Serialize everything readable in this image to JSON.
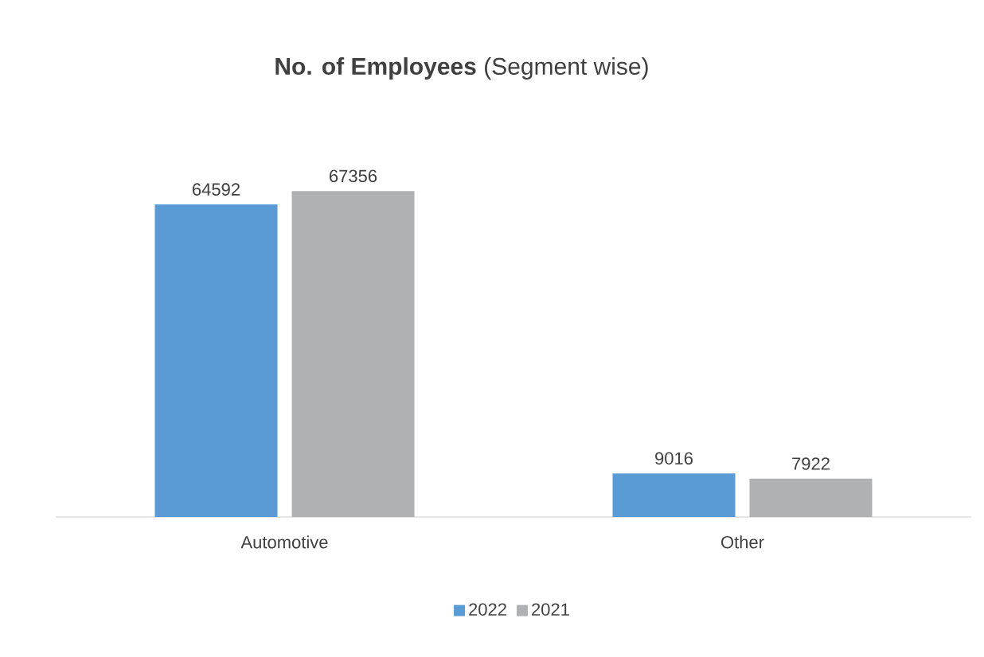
{
  "chart_data": {
    "type": "bar",
    "title": "**No. of Employees** (Segment wise)",
    "categories": [
      "Automotive",
      "Other"
    ],
    "series": [
      {
        "name": "2022",
        "color": "#5b9bd5",
        "values": [
          64592,
          9016
        ]
      },
      {
        "name": "2021",
        "color": "#afb1b3",
        "values": [
          67356,
          7922
        ]
      }
    ],
    "data_labels": true,
    "legend": "bottom"
  }
}
